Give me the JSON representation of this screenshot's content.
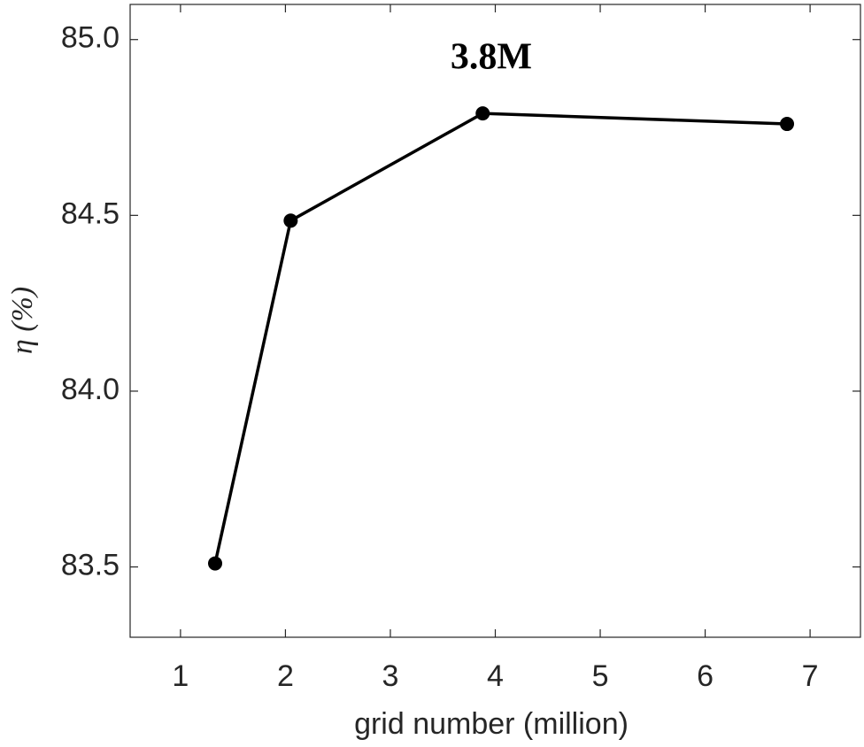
{
  "chart_data": {
    "type": "line",
    "xlabel": "grid number (million)",
    "ylabel": "η (%)",
    "annotation": "3.8M",
    "x": [
      1.33,
      2.05,
      3.88,
      6.78
    ],
    "series": [
      {
        "color": "#000000",
        "values": [
          83.51,
          84.485,
          84.79,
          84.76
        ]
      }
    ],
    "xlim": [
      0.52,
      7.48
    ],
    "xticks": [
      1,
      2,
      3,
      4,
      5,
      6,
      7
    ],
    "ylim": [
      83.3,
      85.1
    ],
    "yticks": [
      {
        "value": 83.5,
        "label": "83.5"
      },
      {
        "value": 84,
        "label": "84.0"
      },
      {
        "value": 84.5,
        "label": "84.5"
      },
      {
        "value": 85,
        "label": "85.0"
      }
    ],
    "grid": false
  }
}
